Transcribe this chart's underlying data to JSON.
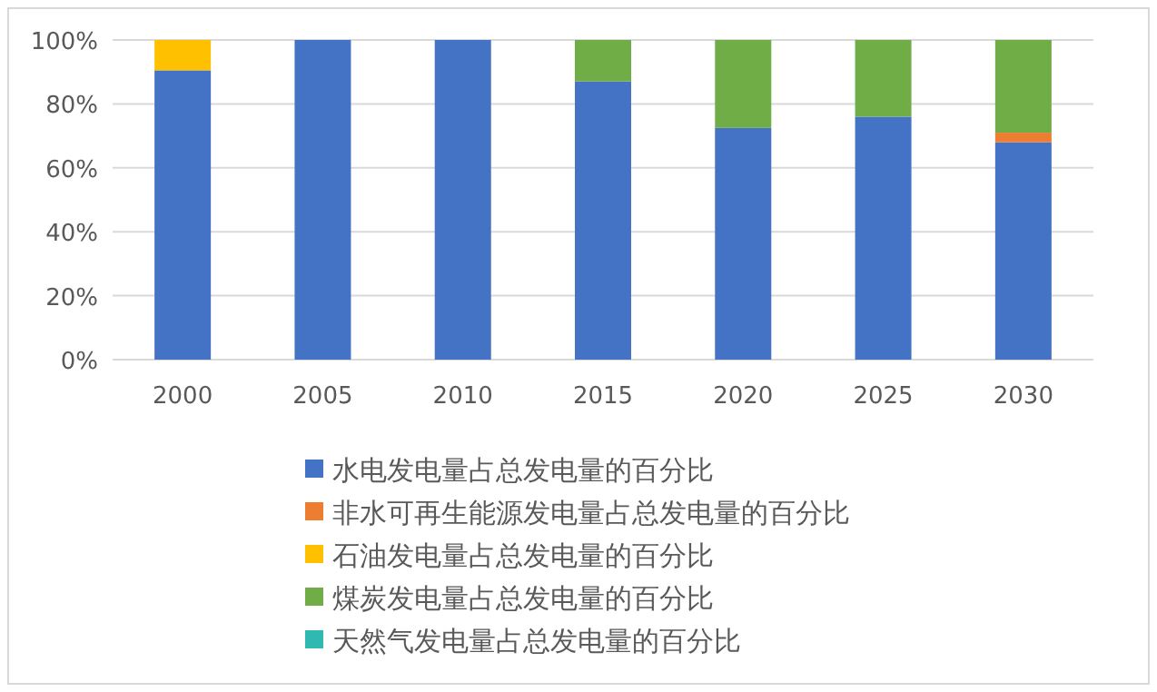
{
  "chart_data": {
    "type": "bar",
    "stacked": true,
    "categories": [
      "2000",
      "2005",
      "2010",
      "2015",
      "2020",
      "2025",
      "2030"
    ],
    "series": [
      {
        "name": "水电发电量占总发电量的百分比",
        "color": "#4472c4",
        "values": [
          90.5,
          100,
          100,
          87,
          72.5,
          76,
          68
        ]
      },
      {
        "name": "非水可再生能源发电量占总发电量的百分比",
        "color": "#ed7d31",
        "values": [
          0,
          0,
          0,
          0,
          0,
          0,
          3
        ]
      },
      {
        "name": "石油发电量占总发电量的百分比",
        "color": "#ffc000",
        "values": [
          9.5,
          0,
          0,
          0,
          0,
          0,
          0
        ]
      },
      {
        "name": "煤炭发电量占总发电量的百分比",
        "color": "#70ad47",
        "values": [
          0,
          0,
          0,
          13,
          27.5,
          24,
          29
        ]
      },
      {
        "name": "天然气发电量占总发电量的百分比",
        "color": "#2fb9b0",
        "values": [
          0,
          0,
          0,
          0,
          0,
          0,
          0
        ]
      }
    ],
    "ylim": [
      0,
      100
    ],
    "yticks": [
      {
        "value": 0,
        "label": "0%"
      },
      {
        "value": 20,
        "label": "20%"
      },
      {
        "value": 40,
        "label": "40%"
      },
      {
        "value": 60,
        "label": "60%"
      },
      {
        "value": 80,
        "label": "80%"
      },
      {
        "value": 100,
        "label": "100%"
      }
    ],
    "grid": "y",
    "legend": "bottom"
  }
}
